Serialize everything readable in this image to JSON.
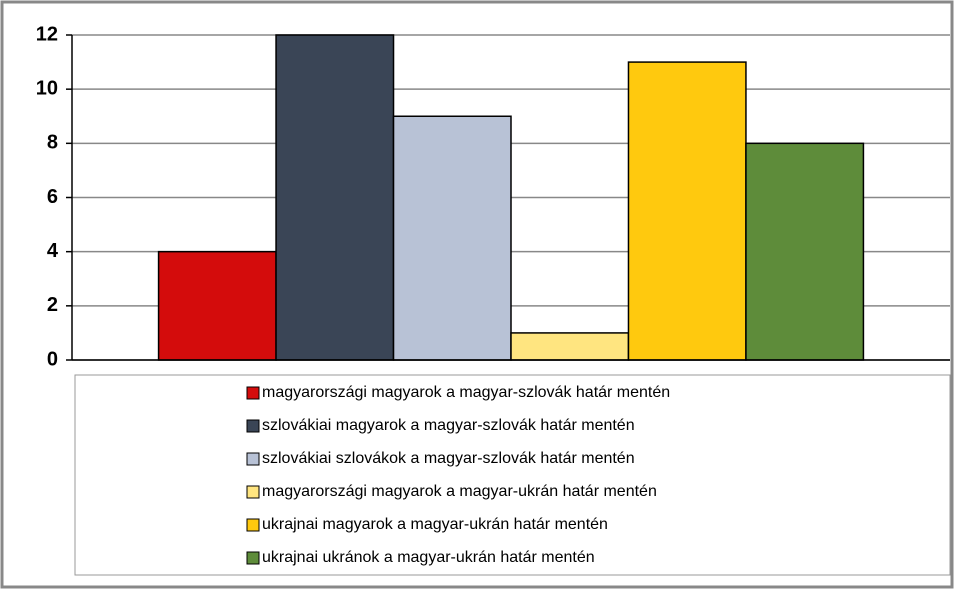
{
  "chart_data": {
    "type": "bar",
    "categories": [
      null
    ],
    "series": [
      {
        "name": "magyarországi magyarok a magyar-szlovák határ mentén",
        "color": "#d40c0c",
        "values": [
          4
        ]
      },
      {
        "name": "szlovákiai magyarok a magyar-szlovák határ mentén",
        "color": "#3a4556",
        "values": [
          12
        ]
      },
      {
        "name": "szlovákiai szlovákok a magyar-szlovák határ mentén",
        "color": "#b8c2d6",
        "values": [
          9
        ]
      },
      {
        "name": "magyarországi magyarok a magyar-ukrán határ mentén",
        "color": "#ffe580",
        "values": [
          1
        ]
      },
      {
        "name": "ukrajnai magyarok a magyar-ukrán határ mentén",
        "color": "#ffc90e",
        "values": [
          11
        ]
      },
      {
        "name": "ukrajnai ukránok a magyar-ukrán határ mentén",
        "color": "#5e8c3a",
        "values": [
          8
        ]
      }
    ],
    "ylim": [
      0,
      12
    ],
    "yticks": [
      0,
      2,
      4,
      6,
      8,
      10,
      12
    ],
    "grid": true,
    "legend": "bottom"
  }
}
